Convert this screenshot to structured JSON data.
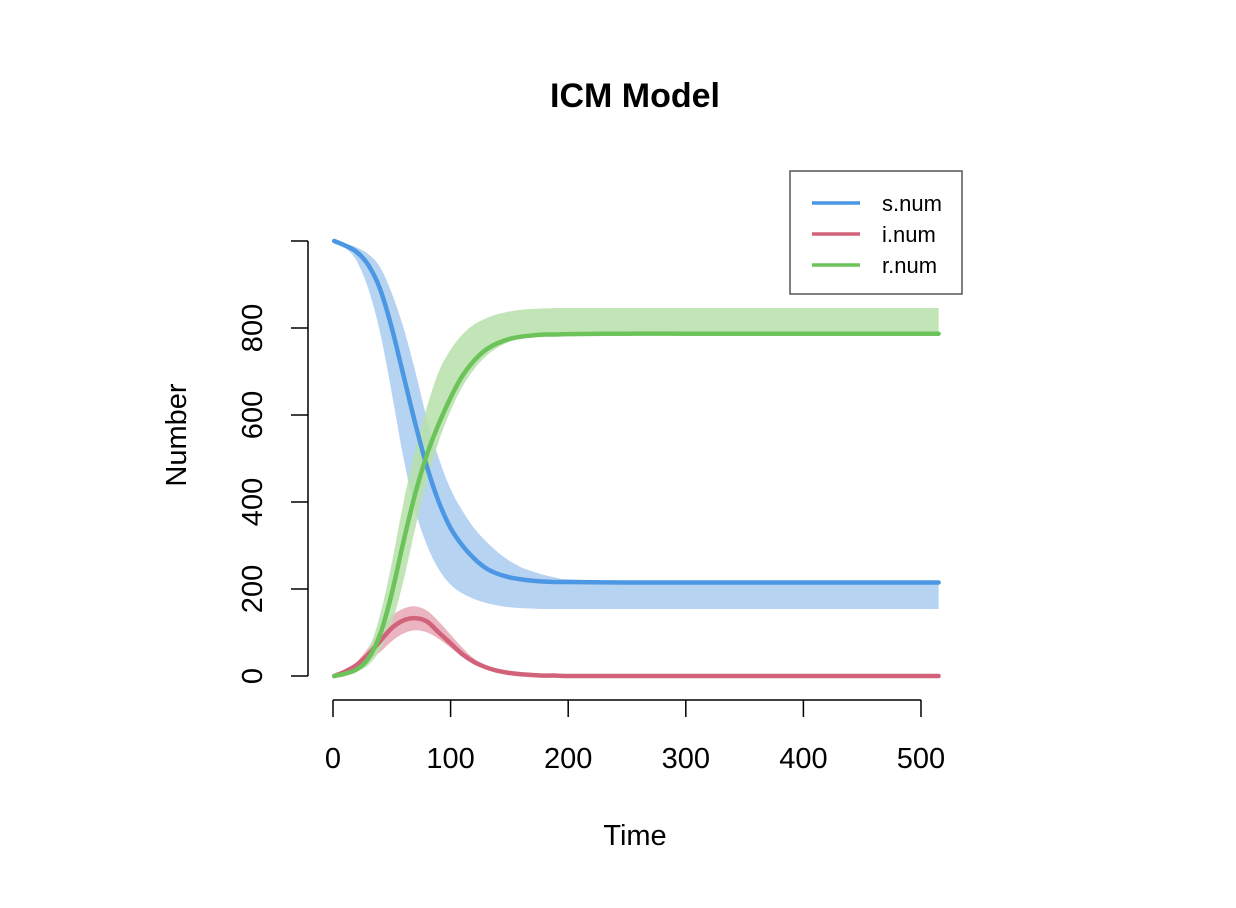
{
  "chart_data": {
    "type": "line",
    "title": "ICM Model",
    "xlabel": "Time",
    "ylabel": "Number",
    "xlim": [
      0,
      500
    ],
    "ylim": [
      0,
      1000
    ],
    "x_ticks": [
      0,
      100,
      200,
      300,
      400,
      500
    ],
    "y_ticks": [
      0,
      200,
      400,
      600,
      800
    ],
    "grid": false,
    "legend_position": "top-right",
    "x": [
      1,
      10,
      20,
      30,
      40,
      50,
      60,
      70,
      80,
      90,
      100,
      110,
      120,
      130,
      140,
      150,
      160,
      170,
      180,
      190,
      200,
      250,
      300,
      350,
      400,
      450,
      500,
      515
    ],
    "series": [
      {
        "name": "s.num",
        "color": "#4c97e3",
        "band_color": "#a9cbf0",
        "values": [
          1000,
          990,
          975,
          945,
          890,
          800,
          690,
          580,
          480,
          400,
          340,
          300,
          270,
          248,
          235,
          227,
          222,
          219,
          217,
          216,
          216,
          215,
          215,
          215,
          215,
          215,
          215,
          215
        ],
        "band_lower": [
          1000,
          985,
          955,
          890,
          790,
          650,
          500,
          380,
          300,
          245,
          210,
          190,
          177,
          168,
          162,
          158,
          156,
          155,
          154,
          154,
          154,
          154,
          154,
          154,
          154,
          154,
          154,
          154
        ],
        "band_upper": [
          1000,
          995,
          985,
          970,
          940,
          880,
          800,
          700,
          590,
          500,
          430,
          380,
          340,
          310,
          285,
          265,
          250,
          240,
          232,
          226,
          222,
          218,
          216,
          216,
          216,
          216,
          216,
          216
        ]
      },
      {
        "name": "i.num",
        "color": "#d1627a",
        "band_color": "#e6a8b6",
        "values": [
          0,
          10,
          25,
          50,
          80,
          110,
          128,
          133,
          125,
          100,
          75,
          50,
          32,
          20,
          12,
          7,
          4,
          2,
          1,
          1,
          0,
          0,
          0,
          0,
          0,
          0,
          0,
          0
        ],
        "band_lower": [
          0,
          8,
          18,
          35,
          55,
          80,
          98,
          105,
          100,
          85,
          65,
          45,
          29,
          18,
          11,
          6,
          3,
          1,
          1,
          0,
          0,
          0,
          0,
          0,
          0,
          0,
          0,
          0
        ],
        "band_upper": [
          0,
          12,
          32,
          65,
          105,
          138,
          155,
          160,
          150,
          125,
          95,
          65,
          40,
          25,
          15,
          9,
          5,
          3,
          2,
          1,
          1,
          0,
          0,
          0,
          0,
          0,
          0,
          0
        ]
      },
      {
        "name": "r.num",
        "color": "#6cc35a",
        "band_color": "#b7e0aa",
        "values": [
          0,
          5,
          15,
          40,
          95,
          190,
          310,
          420,
          510,
          580,
          640,
          690,
          725,
          750,
          765,
          775,
          780,
          783,
          785,
          785,
          786,
          787,
          787,
          787,
          787,
          787,
          787,
          787
        ],
        "band_lower": [
          0,
          3,
          10,
          25,
          60,
          120,
          220,
          340,
          450,
          540,
          610,
          665,
          705,
          735,
          755,
          768,
          776,
          780,
          782,
          784,
          785,
          787,
          787,
          787,
          787,
          787,
          787,
          787
        ],
        "band_upper": [
          0,
          8,
          25,
          60,
          140,
          260,
          400,
          520,
          620,
          700,
          750,
          785,
          808,
          822,
          832,
          838,
          842,
          844,
          845,
          846,
          846,
          846,
          846,
          846,
          846,
          846,
          846,
          846
        ]
      }
    ]
  }
}
